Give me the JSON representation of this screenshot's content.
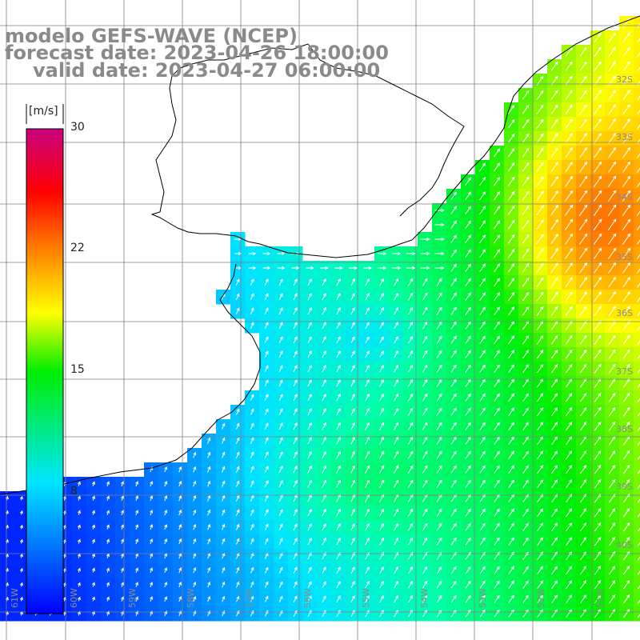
{
  "title": {
    "line1": "modelo GEFS-WAVE (NCEP)",
    "line2": "forecast date: 2023-04-26 18:00:00",
    "line3": "valid date: 2023-04-27 06:00:00"
  },
  "colorbar": {
    "unit": "[m/s]",
    "ticks": [
      "30",
      "22",
      "15",
      "8"
    ],
    "tick_values": [
      30,
      22,
      15,
      8
    ],
    "min": 0,
    "max": 30,
    "colors": [
      "#0000ff",
      "#00aaff",
      "#00ffff",
      "#00ff00",
      "#ffff00",
      "#ff8800",
      "#ff0000",
      "#cc0077"
    ]
  },
  "map": {
    "variable": "wind speed and direction",
    "lon_labels": [
      "61W",
      "60W",
      "59W",
      "58W",
      "57W",
      "56W",
      "55W",
      "54W",
      "53W",
      "52W",
      "51W"
    ],
    "lat_labels": [
      "32S",
      "33S",
      "34S",
      "35S",
      "36S",
      "37S",
      "38S",
      "39S",
      "40S"
    ],
    "land_color": "#ffffff",
    "grid_color": "#808080",
    "coast_color": "#000000"
  }
}
